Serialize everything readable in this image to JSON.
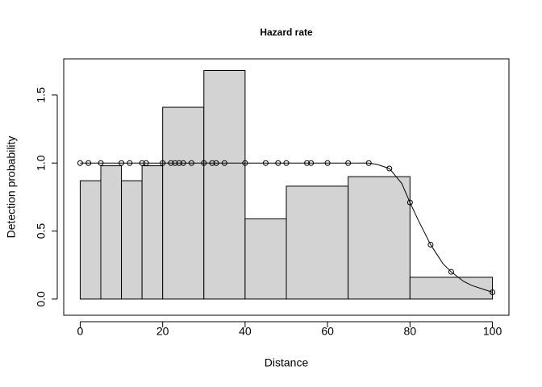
{
  "chart_data": {
    "type": "histogram",
    "title": "Hazard rate",
    "x_label": "Distance",
    "y_label": "Detection probability",
    "bins": [
      0,
      5,
      10,
      15,
      20,
      30,
      40,
      50,
      65,
      80,
      100
    ],
    "values": [
      0.87,
      0.98,
      0.87,
      0.98,
      1.41,
      1.68,
      0.59,
      0.83,
      0.9,
      0.16
    ],
    "color": "#d3d3d3",
    "line": {
      "x": [
        0,
        10,
        20,
        30,
        40,
        50,
        60,
        70,
        72,
        75,
        78,
        80,
        82,
        85,
        88,
        90,
        93,
        95,
        98,
        100
      ],
      "values": [
        1,
        1,
        1,
        1,
        1,
        1,
        1,
        1,
        0.99,
        0.96,
        0.85,
        0.71,
        0.58,
        0.4,
        0.26,
        0.2,
        0.13,
        0.1,
        0.07,
        0.05
      ]
    },
    "points": {
      "x": [
        0,
        2,
        5,
        10,
        12,
        15,
        16,
        20,
        22,
        23,
        24,
        25,
        27,
        30,
        32,
        33,
        35,
        40,
        45,
        48,
        50,
        55,
        56,
        60,
        65,
        70,
        75,
        80,
        85,
        90,
        100
      ],
      "values": [
        1,
        1,
        1,
        1,
        1,
        1,
        1,
        1,
        1,
        1,
        1,
        1,
        1,
        1,
        1,
        1,
        1,
        1,
        1,
        1,
        1,
        1,
        1,
        1,
        1,
        1,
        0.96,
        0.71,
        0.4,
        0.2,
        0.05
      ]
    },
    "xlim": [
      -4,
      104
    ],
    "ylim": [
      -0.119,
      1.766
    ],
    "xticks": [
      0,
      20,
      40,
      60,
      80,
      100
    ],
    "yticks": [
      {
        "value": 0,
        "label": "0.0"
      },
      0.5,
      {
        "value": 1,
        "label": "1.0"
      },
      1.5
    ]
  }
}
